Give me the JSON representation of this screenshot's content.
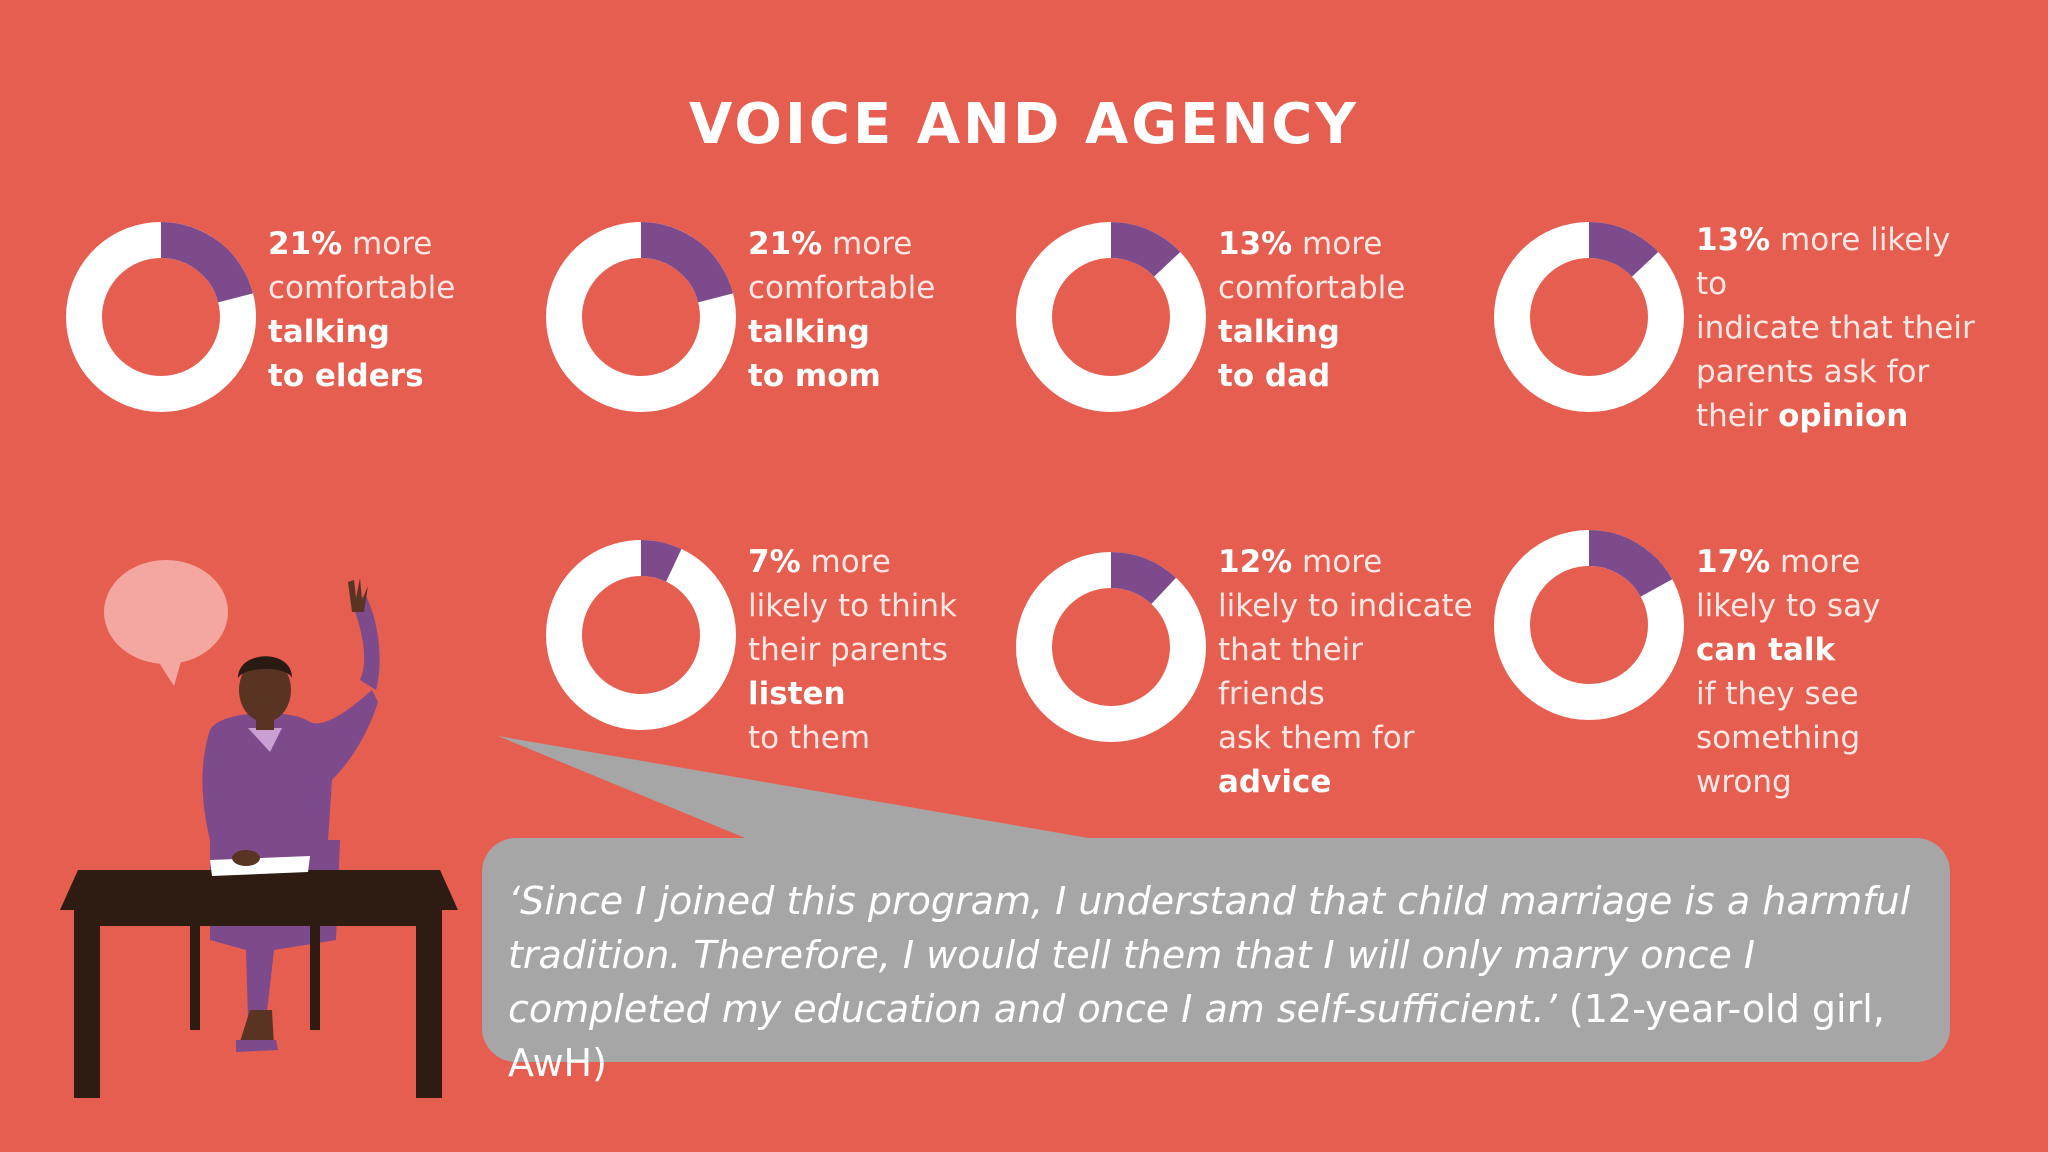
{
  "title": "VOICE AND AGENCY",
  "colors": {
    "background": "#e65e4f",
    "ring": "#ffffff",
    "accent": "#7d4a8c",
    "quote_box": "#a6a6a6"
  },
  "chart_data": {
    "type": "pie",
    "title": "VOICE AND AGENCY",
    "series": [
      {
        "value": 21,
        "unit": "%",
        "lines": [
          {
            "bold": "21%",
            "rest": " more"
          },
          {
            "bold": "",
            "rest": "comfortable"
          },
          {
            "bold": "talking",
            "rest": ""
          },
          {
            "bold": "to elders",
            "rest": ""
          }
        ]
      },
      {
        "value": 21,
        "unit": "%",
        "lines": [
          {
            "bold": "21%",
            "rest": " more"
          },
          {
            "bold": "",
            "rest": "comfortable"
          },
          {
            "bold": "talking",
            "rest": ""
          },
          {
            "bold": "to mom",
            "rest": ""
          }
        ]
      },
      {
        "value": 13,
        "unit": "%",
        "lines": [
          {
            "bold": "13%",
            "rest": " more"
          },
          {
            "bold": "",
            "rest": "comfortable"
          },
          {
            "bold": "talking",
            "rest": ""
          },
          {
            "bold": "to dad",
            "rest": ""
          }
        ]
      },
      {
        "value": 13,
        "unit": "%",
        "lines": [
          {
            "bold": "13%",
            "rest": " more likely to"
          },
          {
            "bold": "",
            "rest": "indicate that their"
          },
          {
            "bold": "",
            "rest": "parents ask for"
          },
          {
            "bold": "",
            "rest": "their ",
            "bold2": "opinion"
          }
        ]
      },
      {
        "value": 7,
        "unit": "%",
        "lines": [
          {
            "bold": "7%",
            "rest": " more"
          },
          {
            "bold": "",
            "rest": "likely to think"
          },
          {
            "bold": "",
            "rest": "their parents"
          },
          {
            "bold": "listen",
            "rest": ""
          },
          {
            "bold": "",
            "rest": "to them"
          }
        ]
      },
      {
        "value": 12,
        "unit": "%",
        "lines": [
          {
            "bold": "12%",
            "rest": " more"
          },
          {
            "bold": "",
            "rest": "likely to indicate"
          },
          {
            "bold": "",
            "rest": "that their friends"
          },
          {
            "bold": "",
            "rest": "ask them for"
          },
          {
            "bold": "advice",
            "rest": ""
          }
        ]
      },
      {
        "value": 17,
        "unit": "%",
        "lines": [
          {
            "bold": "17%",
            "rest": " more"
          },
          {
            "bold": "",
            "rest": "likely to say"
          },
          {
            "bold": "can talk",
            "rest": ""
          },
          {
            "bold": "",
            "rest": "if they see"
          },
          {
            "bold": "",
            "rest": "something wrong"
          }
        ]
      }
    ]
  },
  "quote": {
    "text": "‘Since I joined this program, I understand that child marriage is a harmful tradition. Therefore, I would tell them that I will only marry once I completed my education and once I am self-sufficient.’",
    "attribution": " (12-year-old girl, AwH)"
  }
}
